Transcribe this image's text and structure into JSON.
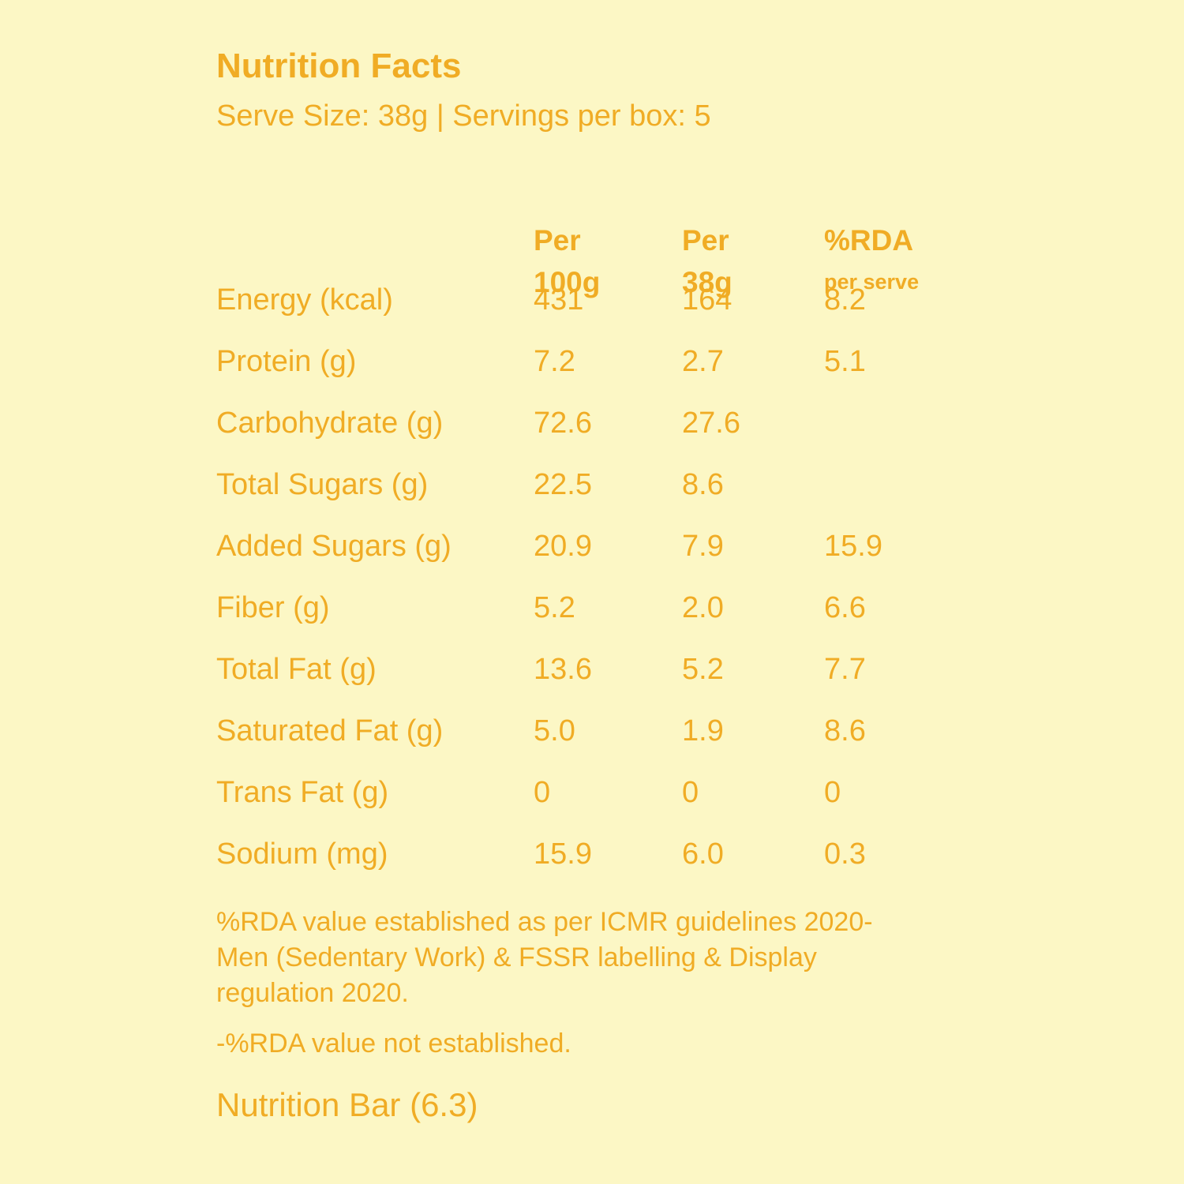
{
  "title": "Nutrition Facts",
  "subtitle": "Serve Size: 38g | Servings per box: 5",
  "columns": [
    {
      "line1": "Per",
      "line2": "100g"
    },
    {
      "line1": "Per",
      "line2": "38g"
    },
    {
      "line1": "%RDA",
      "line2": "per serve"
    }
  ],
  "rows": [
    {
      "name": "Energy (kcal)",
      "per100": "431",
      "perServe": "164",
      "rda": "8.2"
    },
    {
      "name": "Protein (g)",
      "per100": "7.2",
      "perServe": "2.7",
      "rda": "5.1"
    },
    {
      "name": "Carbohydrate (g)",
      "per100": "72.6",
      "perServe": "27.6",
      "rda": ""
    },
    {
      "name": "Total Sugars (g)",
      "per100": "22.5",
      "perServe": "8.6",
      "rda": ""
    },
    {
      "name": "Added Sugars (g)",
      "per100": "20.9",
      "perServe": "7.9",
      "rda": "15.9"
    },
    {
      "name": "Fiber (g)",
      "per100": "5.2",
      "perServe": "2.0",
      "rda": "6.6"
    },
    {
      "name": "Total Fat (g)",
      "per100": "13.6",
      "perServe": "5.2",
      "rda": "7.7"
    },
    {
      "name": "Saturated Fat (g)",
      "per100": "5.0",
      "perServe": "1.9",
      "rda": "8.6"
    },
    {
      "name": "Trans Fat (g)",
      "per100": "0",
      "perServe": "0",
      "rda": "0"
    },
    {
      "name": "Sodium (mg)",
      "per100": "15.9",
      "perServe": "6.0",
      "rda": "0.3"
    }
  ],
  "notes": {
    "rda_source": "%RDA value established as per ICMR guidelines 2020-Men (Sedentary Work) & FSSR labelling & Display regulation 2020.",
    "not_established": "-%RDA value not established."
  },
  "footer": "Nutrition Bar (6.3)",
  "colors": {
    "background": "#fcf7c5",
    "text": "#f0ac25"
  }
}
